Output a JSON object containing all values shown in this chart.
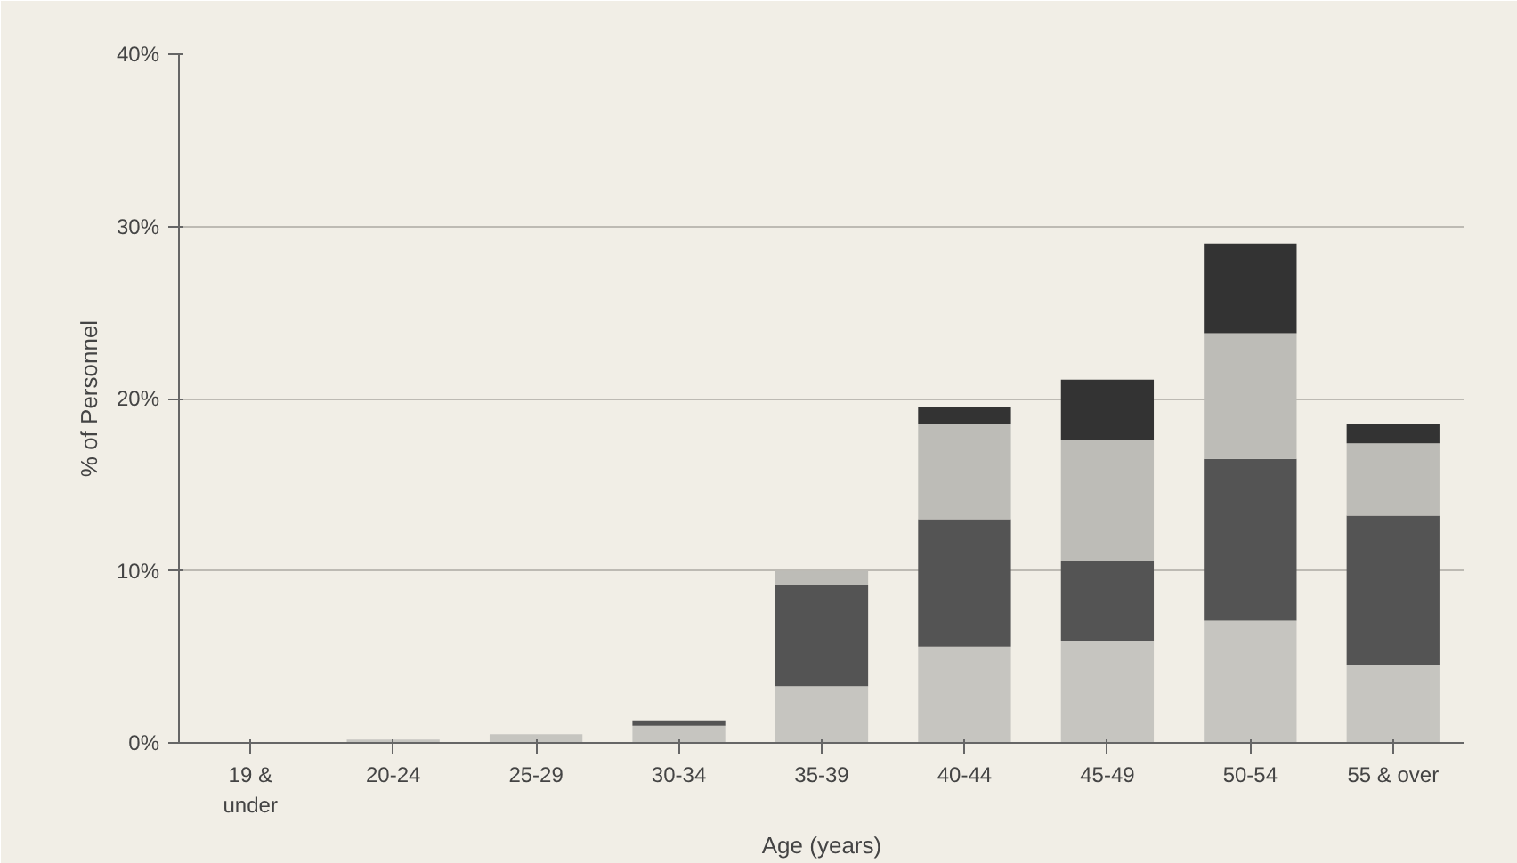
{
  "chart_data": {
    "type": "bar",
    "stacked": true,
    "xlabel": "Age (years)",
    "ylabel": "% of Personnel",
    "categories": [
      "19 &\nunder",
      "20-24",
      "25-29",
      "30-34",
      "35-39",
      "40-44",
      "45-49",
      "50-54",
      "55 & over"
    ],
    "series": [
      {
        "color": "#c6c5c0",
        "values": [
          0,
          0.2,
          0.5,
          1.0,
          3.3,
          5.6,
          5.9,
          7.1,
          4.5
        ]
      },
      {
        "color": "#545454",
        "values": [
          0,
          0,
          0,
          0.3,
          5.9,
          7.4,
          4.7,
          9.4,
          8.7
        ]
      },
      {
        "color": "#bdbcb7",
        "values": [
          0,
          0,
          0,
          0,
          0.8,
          5.5,
          7.0,
          7.3,
          4.2
        ]
      },
      {
        "color": "#333333",
        "values": [
          0,
          0,
          0,
          0,
          0,
          1.0,
          3.5,
          5.2,
          1.1
        ]
      }
    ],
    "ylim": [
      0,
      40
    ],
    "yticks": [
      {
        "value": 0,
        "label": "0%"
      },
      {
        "value": 10,
        "label": "10%"
      },
      {
        "value": 20,
        "label": "20%"
      },
      {
        "value": 30,
        "label": "30%"
      },
      {
        "value": 40,
        "label": "40%"
      }
    ],
    "grid": "y"
  }
}
